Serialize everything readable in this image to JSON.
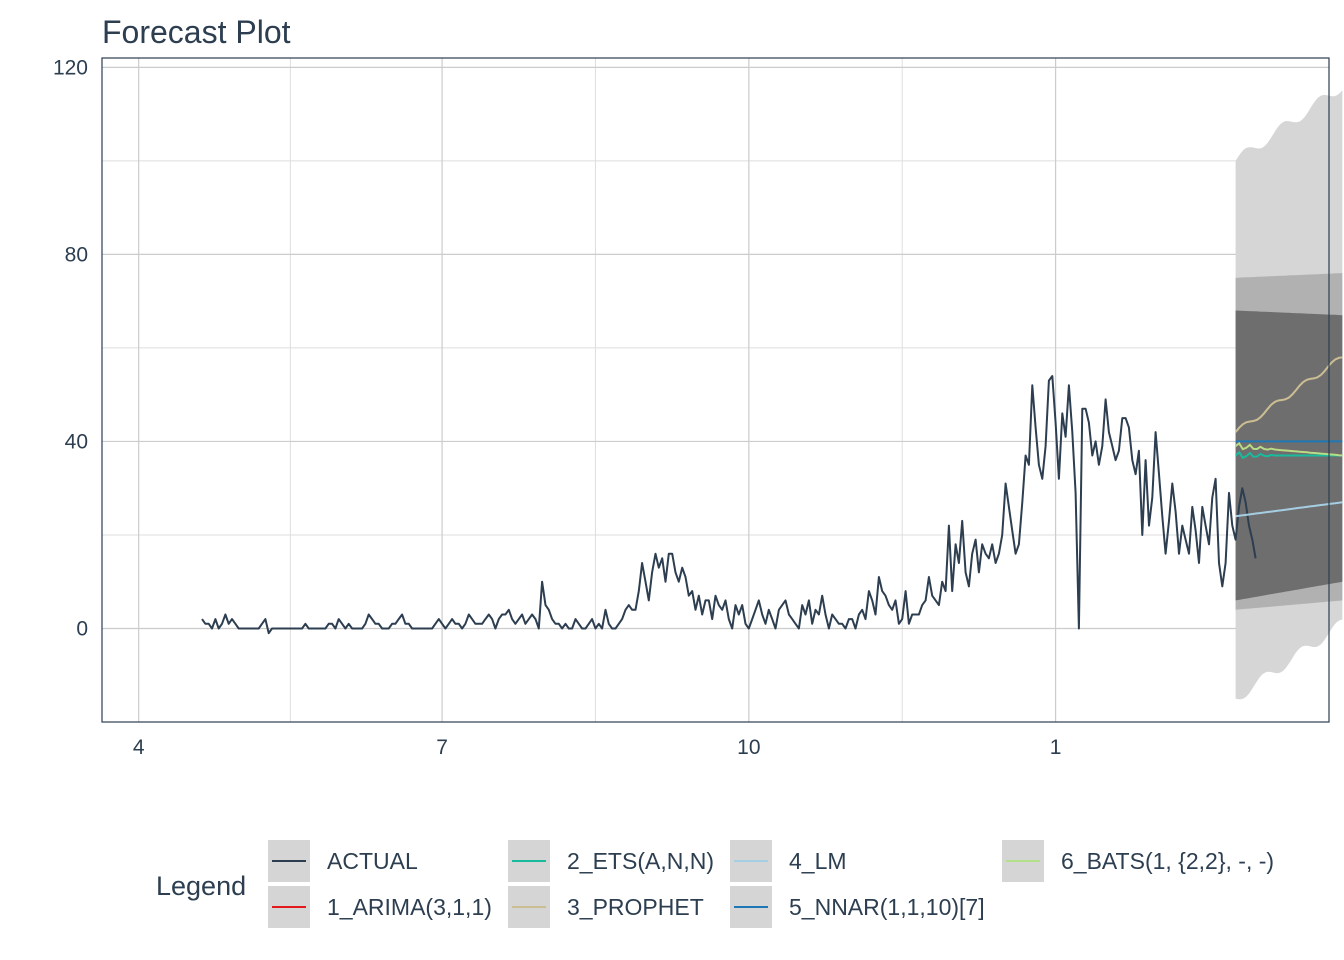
{
  "chart_data": {
    "type": "line",
    "title": "Forecast Plot",
    "xlabel": "",
    "ylabel": "",
    "x_ticks": [
      "4",
      "7",
      "10",
      "1"
    ],
    "y_ticks": [
      0,
      40,
      80,
      120
    ],
    "ylim": [
      -20,
      122
    ],
    "xlim_days": [
      80,
      448
    ],
    "grid": true,
    "legend": {
      "title": "Legend",
      "placement": "bottom"
    },
    "actual": {
      "name": "ACTUAL",
      "color": "#2c3e50",
      "start_day": 110,
      "values": [
        2,
        1,
        1,
        0,
        2,
        0,
        1,
        3,
        1,
        2,
        1,
        0,
        0,
        0,
        0,
        0,
        0,
        0,
        1,
        2,
        -1,
        0,
        0,
        0,
        0,
        0,
        0,
        0,
        0,
        0,
        0,
        1,
        0,
        0,
        0,
        0,
        0,
        0,
        1,
        1,
        0,
        2,
        1,
        0,
        1,
        0,
        0,
        0,
        0,
        1,
        3,
        2,
        1,
        1,
        0,
        0,
        0,
        1,
        1,
        2,
        3,
        1,
        1,
        0,
        0,
        0,
        0,
        0,
        0,
        0,
        1,
        2,
        1,
        0,
        1,
        2,
        1,
        1,
        0,
        1,
        3,
        2,
        1,
        1,
        1,
        2,
        3,
        2,
        0,
        2,
        3,
        3,
        4,
        2,
        1,
        2,
        3,
        1,
        2,
        3,
        2,
        0,
        10,
        5,
        4,
        2,
        1,
        1,
        0,
        1,
        0,
        0,
        2,
        1,
        0,
        0,
        1,
        2,
        0,
        1,
        0,
        4,
        1,
        0,
        0,
        1,
        2,
        4,
        5,
        4,
        4,
        8,
        14,
        10,
        6,
        12,
        16,
        13,
        15,
        10,
        16,
        16,
        12,
        10,
        13,
        11,
        7,
        8,
        4,
        7,
        3,
        6,
        6,
        2,
        7,
        5,
        4,
        6,
        2,
        0,
        5,
        3,
        5,
        1,
        0,
        2,
        4,
        6,
        3,
        1,
        4,
        2,
        0,
        4,
        5,
        6,
        3,
        2,
        1,
        0,
        5,
        3,
        6,
        1,
        4,
        3,
        7,
        3,
        0,
        3,
        2,
        1,
        1,
        0,
        2,
        2,
        0,
        3,
        4,
        2,
        8,
        6,
        3,
        11,
        8,
        7,
        5,
        4,
        6,
        1,
        2,
        8,
        1,
        3,
        3,
        3,
        5,
        6,
        11,
        7,
        6,
        5,
        10,
        8,
        22,
        8,
        18,
        14,
        23,
        12,
        9,
        16,
        19,
        12,
        18,
        16,
        15,
        18,
        14,
        16,
        20,
        31,
        26,
        21,
        16,
        18,
        27,
        37,
        35,
        52,
        43,
        35,
        32,
        39,
        53,
        54,
        44,
        32,
        46,
        41,
        52,
        42,
        29,
        0,
        47,
        47,
        44,
        37,
        40,
        35,
        39,
        49,
        42,
        39,
        36,
        38,
        45,
        45,
        43,
        36,
        33,
        38,
        20,
        36,
        22,
        28,
        42,
        33,
        24,
        16,
        23,
        31,
        25,
        16,
        22,
        19,
        16,
        26,
        21,
        14,
        26,
        22,
        18,
        28,
        32,
        14,
        9,
        14,
        29,
        22,
        19,
        26,
        30,
        27,
        22,
        19,
        15
      ]
    },
    "forecast_start_day": 420,
    "forecast_horizon": 32,
    "models": [
      {
        "name": "1_ARIMA(3,1,1)",
        "color": "#e31a1c",
        "start": 39,
        "end": 37
      },
      {
        "name": "2_ETS(A,N,N)",
        "color": "#18bc9c",
        "start": 37,
        "end": 37
      },
      {
        "name": "3_PROPHET",
        "color": "#ccbe93",
        "start": 42,
        "end": 58
      },
      {
        "name": "4_LM",
        "color": "#a6cee3",
        "start": 24,
        "end": 27
      },
      {
        "name": "5_NNAR(1,1,10)[7]",
        "color": "#1f78b4",
        "start": 40,
        "end": 40
      },
      {
        "name": "6_BATS(1, {2,2}, -, -)",
        "color": "#b2df8a",
        "start": 39,
        "end": 37
      }
    ],
    "intervals": [
      {
        "level": "outer",
        "lower_start": -15,
        "lower_end": 1,
        "upper_start": 100,
        "upper_end": 116
      },
      {
        "level": "mid",
        "lower_start": 4,
        "lower_end": 6,
        "upper_start": 75,
        "upper_end": 76
      },
      {
        "level": "inner",
        "lower_start": 6,
        "lower_end": 10,
        "upper_start": 68,
        "upper_end": 67
      }
    ]
  },
  "legend": {
    "title": "Legend",
    "items": [
      {
        "label": "ACTUAL",
        "color": "#2c3e50"
      },
      {
        "label": "1_ARIMA(3,1,1)",
        "color": "#e31a1c"
      },
      {
        "label": "2_ETS(A,N,N)",
        "color": "#18bc9c"
      },
      {
        "label": "3_PROPHET",
        "color": "#ccbe93"
      },
      {
        "label": "4_LM",
        "color": "#a6cee3"
      },
      {
        "label": "5_NNAR(1,1,10)[7]",
        "color": "#1f78b4"
      },
      {
        "label": "6_BATS(1, {2,2}, -, -)",
        "color": "#b2df8a"
      }
    ]
  }
}
